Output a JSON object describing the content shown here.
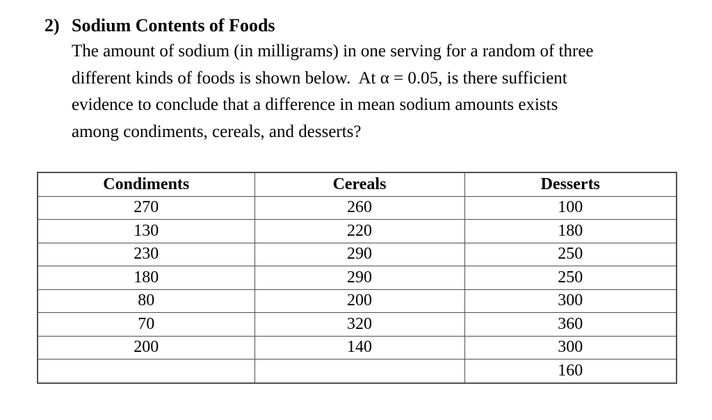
{
  "document": {
    "problem_number": "2)",
    "title": "Sodium Contents of Foods",
    "paragraph_lines": [
      "The amount of sodium (in milligrams) in one serving for a random of three",
      "different kinds of foods is shown below.  At α = 0.05, is there sufficient",
      "evidence to conclude that a difference in mean sodium amounts exists",
      "among condiments, cereals, and desserts?"
    ]
  },
  "table": {
    "headers": [
      "Condiments",
      "Cereals",
      "Desserts"
    ],
    "rows": [
      [
        "270",
        "260",
        "100"
      ],
      [
        "130",
        "220",
        "180"
      ],
      [
        "230",
        "290",
        "250"
      ],
      [
        "180",
        "290",
        "250"
      ],
      [
        "80",
        "200",
        "300"
      ],
      [
        "70",
        "320",
        "360"
      ],
      [
        "200",
        "140",
        "300"
      ],
      [
        "",
        "",
        "160"
      ]
    ]
  }
}
